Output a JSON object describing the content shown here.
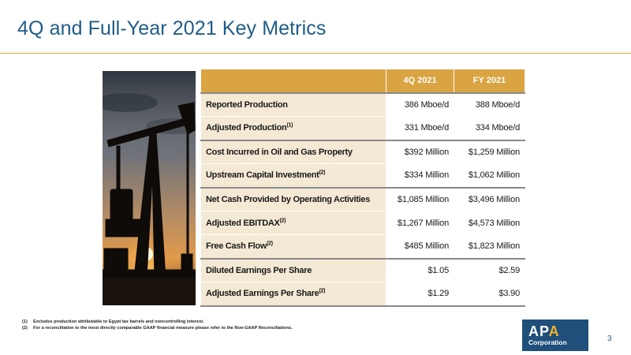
{
  "slide": {
    "title": "4Q and Full-Year 2021 Key Metrics",
    "page_number": "3"
  },
  "table": {
    "headers": [
      "",
      "4Q 2021",
      "FY 2021"
    ],
    "rows": [
      {
        "label": "Reported Production",
        "note": "",
        "q4": "386 Mboe/d",
        "fy": "388 Mboe/d"
      },
      {
        "label": "Adjusted Production",
        "note": "(1)",
        "q4": "331 Mboe/d",
        "fy": "334 Mboe/d"
      },
      {
        "label": "Cost Incurred in Oil and Gas Property",
        "note": "",
        "q4": "$392 Million",
        "fy": "$1,259 Million"
      },
      {
        "label": "Upstream Capital Investment",
        "note": "(2)",
        "q4": "$334 Million",
        "fy": "$1,062 Million"
      },
      {
        "label": "Net Cash Provided by Operating Activities",
        "note": "",
        "q4": "$1,085 Million",
        "fy": "$3,496 Million"
      },
      {
        "label": "Adjusted EBITDAX",
        "note": "(2)",
        "q4": "$1,267 Million",
        "fy": "$4,573 Million"
      },
      {
        "label": "Free Cash Flow",
        "note": "(2)",
        "q4": "$485 Million",
        "fy": "$1,823 Million"
      },
      {
        "label": "Diluted Earnings Per Share",
        "note": "",
        "q4": "$1.05",
        "fy": "$2.59"
      },
      {
        "label": "Adjusted Earnings Per Share",
        "note": "(2)",
        "q4": "$1.29",
        "fy": "$3.90"
      }
    ]
  },
  "footnotes": [
    {
      "num": "(1)",
      "text": "Excludes production attributable to Egypt tax barrels and noncontrolling interest."
    },
    {
      "num": "(2)",
      "text": "For a reconciliation to the most directly comparable GAAP financial measure please refer to the Non-GAAP Reconciliations."
    }
  ],
  "logo": {
    "word_a": "AP",
    "word_b": "A",
    "sub": "Corporation"
  },
  "colors": {
    "title": "#1f5c86",
    "accent_gold": "#d9a441",
    "label_fill": "#f4e9d4",
    "logo_blue": "#1f4f7a",
    "logo_gold": "#f2b22e"
  },
  "image": {
    "icon": "oil-pumpjack-sunset-photo"
  }
}
